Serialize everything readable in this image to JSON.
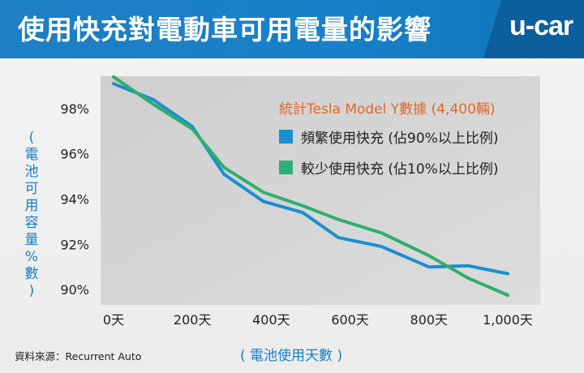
{
  "header": {
    "title": "使用快充對電動車可用電量的影響",
    "logo": "u-car"
  },
  "source": "資料來源：Recurrent Auto",
  "colors": {
    "header_bg": "#1780c8",
    "series_frequent": "#1a8fd0",
    "series_rare": "#2fae6e",
    "legend_title": "#e0682a",
    "axis_label": "#1a7fc2"
  },
  "chart_data": {
    "type": "line",
    "title": "統計Tesla  Model Y數據 (4,400輛)",
    "xlabel": "( 電池使用天數 )",
    "ylabel_chars": [
      "(",
      "電",
      "池",
      "可",
      "用",
      "容",
      "量",
      "%",
      "數",
      ")"
    ],
    "xlim": [
      0,
      1000
    ],
    "ylim": [
      89.5,
      99.0
    ],
    "x_ticks": [
      0,
      200,
      400,
      600,
      800,
      1000
    ],
    "x_tick_labels": [
      "0天",
      "200天",
      "400天",
      "600天",
      "800天",
      "1,000天"
    ],
    "y_ticks": [
      90,
      92,
      94,
      96,
      98
    ],
    "y_tick_labels": [
      "90%",
      "92%",
      "94%",
      "96%",
      "98%"
    ],
    "grid": false,
    "legend_position": "top-right",
    "series": [
      {
        "name": "頻繁使用快充 (佔90%以上比例)",
        "color": "#1a8fd0",
        "x": [
          0,
          100,
          200,
          280,
          380,
          480,
          570,
          680,
          800,
          900,
          1000
        ],
        "values": [
          99.1,
          98.4,
          97.2,
          95.1,
          93.9,
          93.4,
          92.3,
          91.9,
          91.0,
          91.05,
          90.7
        ]
      },
      {
        "name": "較少使用快充 (佔10%以上比例)",
        "color": "#2fae6e",
        "x": [
          0,
          100,
          200,
          280,
          380,
          480,
          570,
          680,
          800,
          900,
          1000
        ],
        "values": [
          99.4,
          98.2,
          97.1,
          95.4,
          94.3,
          93.7,
          93.1,
          92.5,
          91.5,
          90.5,
          89.75
        ]
      }
    ]
  }
}
